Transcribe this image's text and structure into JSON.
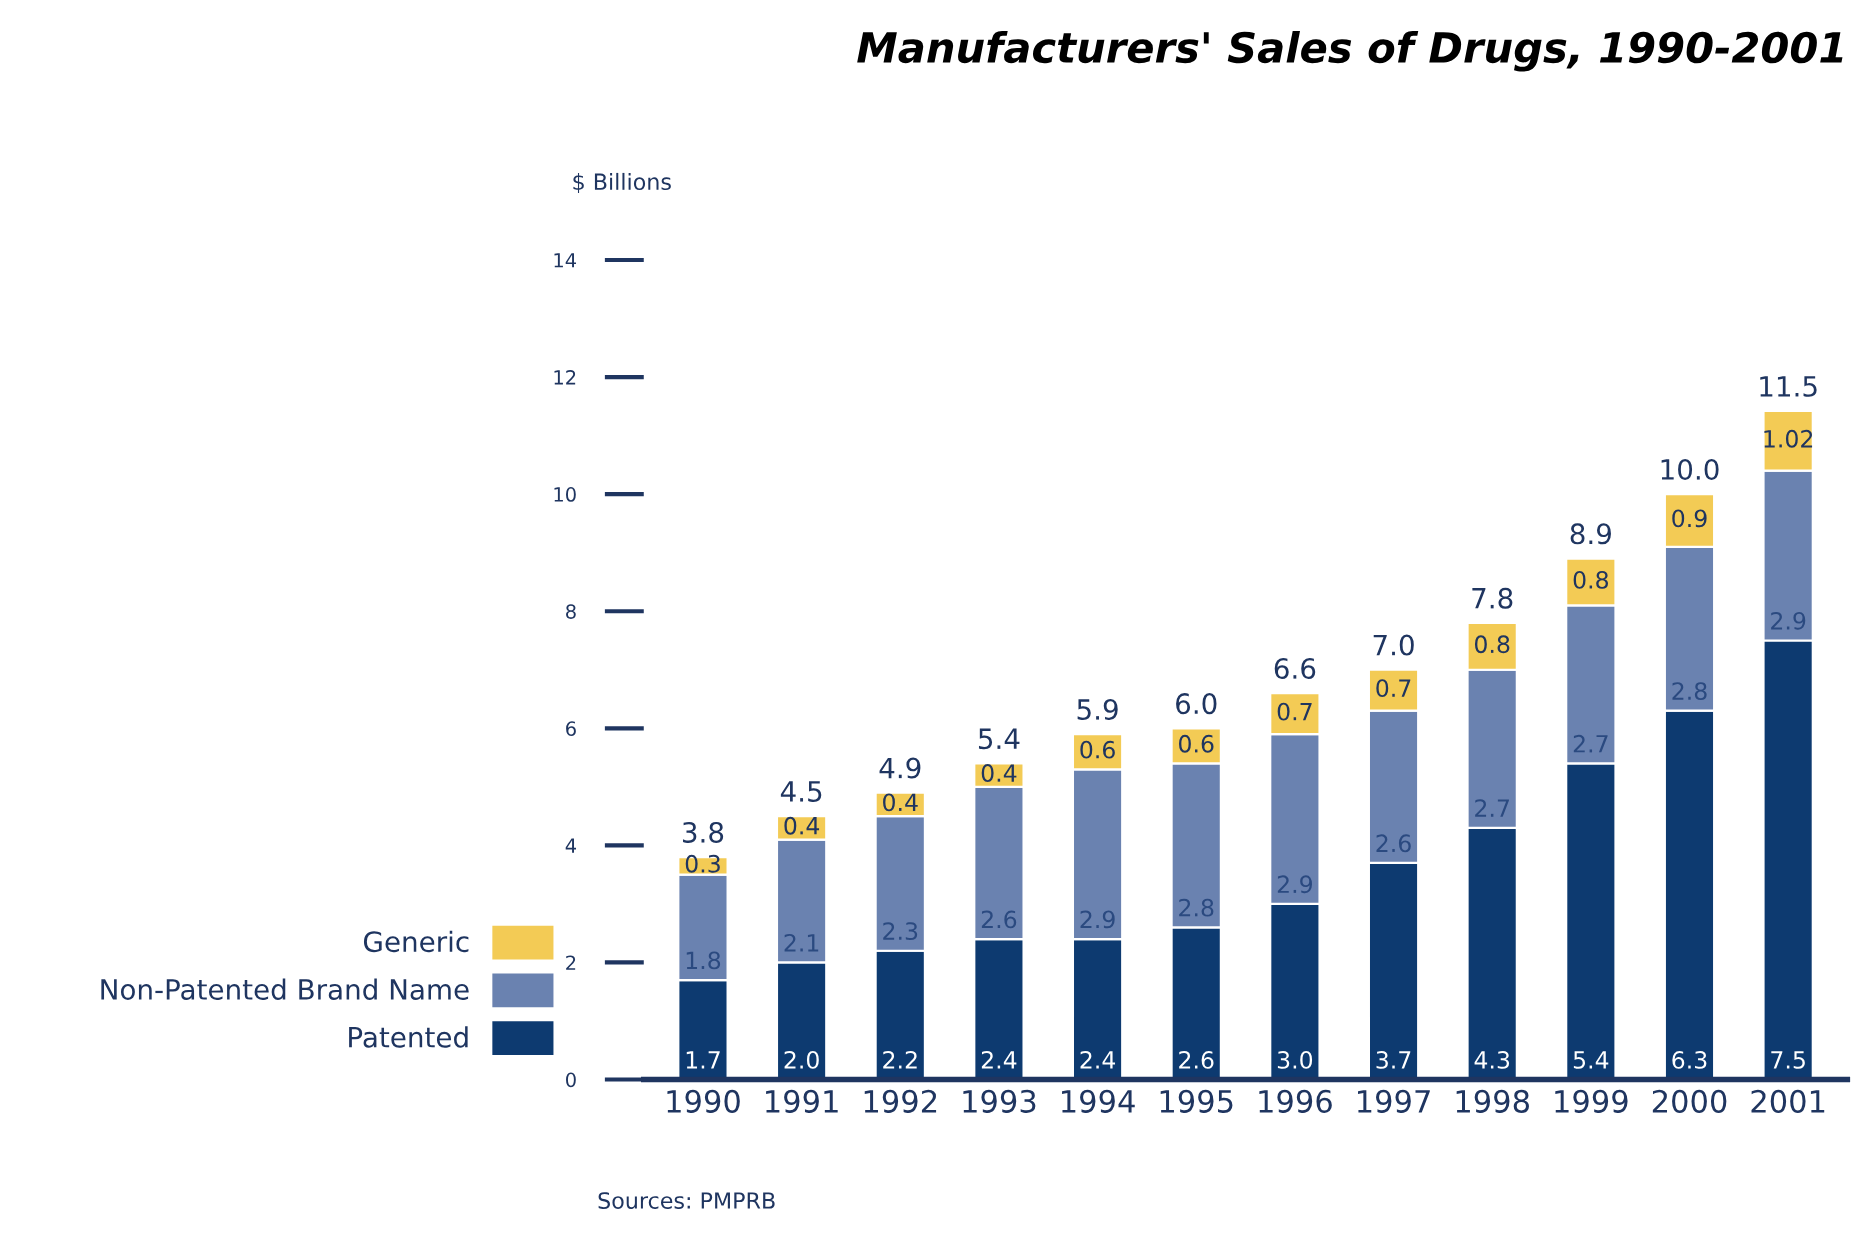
{
  "chart_data": {
    "type": "bar",
    "stacked": true,
    "title": "Manufacturers' Sales of Drugs, 1990-2001",
    "ylabel": "$ Billions",
    "categories": [
      "1990",
      "1991",
      "1992",
      "1993",
      "1994",
      "1995",
      "1996",
      "1997",
      "1998",
      "1999",
      "2000",
      "2001"
    ],
    "series": [
      {
        "name": "Patented",
        "color": "#0d3a70",
        "values": [
          1.7,
          2.0,
          2.2,
          2.4,
          2.4,
          2.6,
          3.0,
          3.7,
          4.3,
          5.4,
          6.3,
          7.5
        ],
        "value_labels": [
          "1.7",
          "2.0",
          "2.2",
          "2.4",
          "2.4",
          "2.6",
          "3.0",
          "3.7",
          "4.3",
          "5.4",
          "6.3",
          "7.5"
        ]
      },
      {
        "name": "Non-Patented Brand Name",
        "color": "#6a82b0",
        "values": [
          1.8,
          2.1,
          2.3,
          2.6,
          2.9,
          2.8,
          2.9,
          2.6,
          2.7,
          2.7,
          2.8,
          2.9
        ],
        "value_labels": [
          "1.8",
          "2.1",
          "2.3",
          "2.6",
          "2.9",
          "2.8",
          "2.9",
          "2.6",
          "2.7",
          "2.7",
          "2.8",
          "2.9"
        ]
      },
      {
        "name": "Generic",
        "color": "#f3cb55",
        "values": [
          0.3,
          0.4,
          0.4,
          0.4,
          0.6,
          0.6,
          0.7,
          0.7,
          0.8,
          0.8,
          0.9,
          1.02
        ],
        "value_labels": [
          "0.3",
          "0.4",
          "0.4",
          "0.4",
          "0.6",
          "0.6",
          "0.7",
          "0.7",
          "0.8",
          "0.8",
          "0.9",
          "1.02"
        ]
      }
    ],
    "totals": [
      "3.8",
      "4.5",
      "4.9",
      "5.4",
      "5.9",
      "6.0",
      "6.6",
      "7.0",
      "7.8",
      "8.9",
      "10.0",
      "11.5"
    ],
    "ylim": [
      0,
      14
    ],
    "yticks": [
      0,
      2,
      4,
      6,
      8,
      10,
      12,
      14
    ],
    "grid": false,
    "legend": "left",
    "annotations": [
      "Sources: PMPRB"
    ]
  }
}
